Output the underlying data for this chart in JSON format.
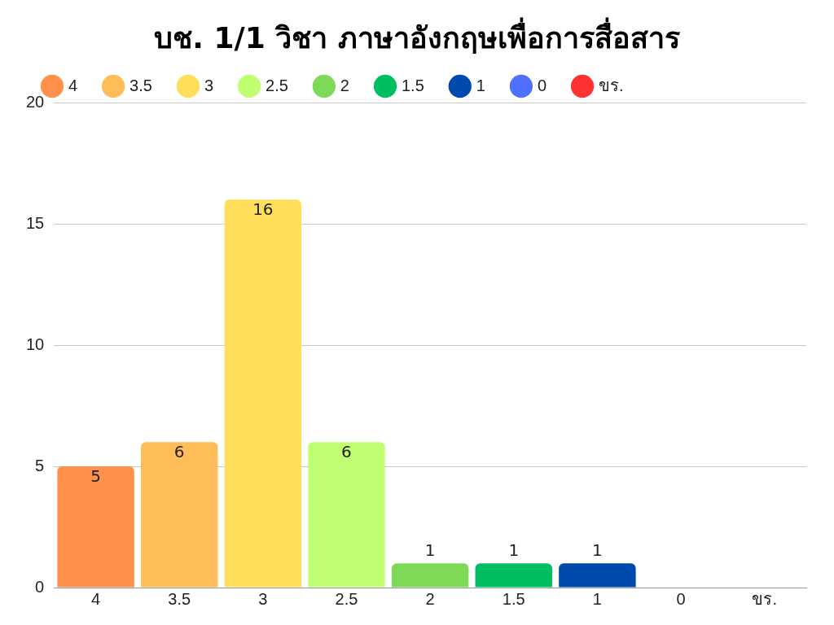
{
  "chart_data": {
    "type": "bar",
    "title": "บช. 1/1 วิชา ภาษาอังกฤษเพื่อการสื่อสาร",
    "categories": [
      "4",
      "3.5",
      "3",
      "2.5",
      "2",
      "1.5",
      "1",
      "0",
      "ขร."
    ],
    "series": [
      {
        "name": "4",
        "color": "#ff914d",
        "values": [
          5,
          null,
          null,
          null,
          null,
          null,
          null,
          null,
          null
        ],
        "value_labels": [
          "5",
          null,
          null,
          null,
          null,
          null,
          null,
          null,
          null
        ]
      },
      {
        "name": "3.5",
        "color": "#ffbd59",
        "values": [
          null,
          6,
          null,
          null,
          null,
          null,
          null,
          null,
          null
        ],
        "value_labels": [
          null,
          "6",
          null,
          null,
          null,
          null,
          null,
          null,
          null
        ]
      },
      {
        "name": "3",
        "color": "#ffde59",
        "values": [
          null,
          null,
          16,
          null,
          null,
          null,
          null,
          null,
          null
        ],
        "value_labels": [
          null,
          null,
          "16",
          null,
          null,
          null,
          null,
          null,
          null
        ]
      },
      {
        "name": "2.5",
        "color": "#c1ff72",
        "values": [
          null,
          null,
          null,
          6,
          null,
          null,
          null,
          null,
          null
        ],
        "value_labels": [
          null,
          null,
          null,
          "6",
          null,
          null,
          null,
          null,
          null
        ]
      },
      {
        "name": "2",
        "color": "#7ed957",
        "values": [
          null,
          null,
          null,
          null,
          1,
          null,
          null,
          null,
          null
        ],
        "value_labels": [
          null,
          null,
          null,
          null,
          "1",
          null,
          null,
          null,
          null
        ]
      },
      {
        "name": "1.5",
        "color": "#00bf63",
        "values": [
          null,
          null,
          null,
          null,
          null,
          1,
          null,
          null,
          null
        ],
        "value_labels": [
          null,
          null,
          null,
          null,
          null,
          "1",
          null,
          null,
          null
        ]
      },
      {
        "name": "1",
        "color": "#004aad",
        "values": [
          null,
          null,
          null,
          null,
          null,
          null,
          1,
          null,
          null
        ],
        "value_labels": [
          null,
          null,
          null,
          null,
          null,
          null,
          "1",
          null,
          null
        ]
      },
      {
        "name": "0",
        "color": "#5170ff",
        "values": [
          null,
          null,
          null,
          null,
          null,
          null,
          null,
          0,
          null
        ]
      },
      {
        "name": "ขร.",
        "color": "#ff3131",
        "values": [
          null,
          null,
          null,
          null,
          null,
          null,
          null,
          null,
          0
        ]
      }
    ],
    "ylim": [
      0,
      20
    ],
    "yticks": [
      0,
      5,
      10,
      15,
      20
    ],
    "grid": "y",
    "legend": "top left"
  }
}
